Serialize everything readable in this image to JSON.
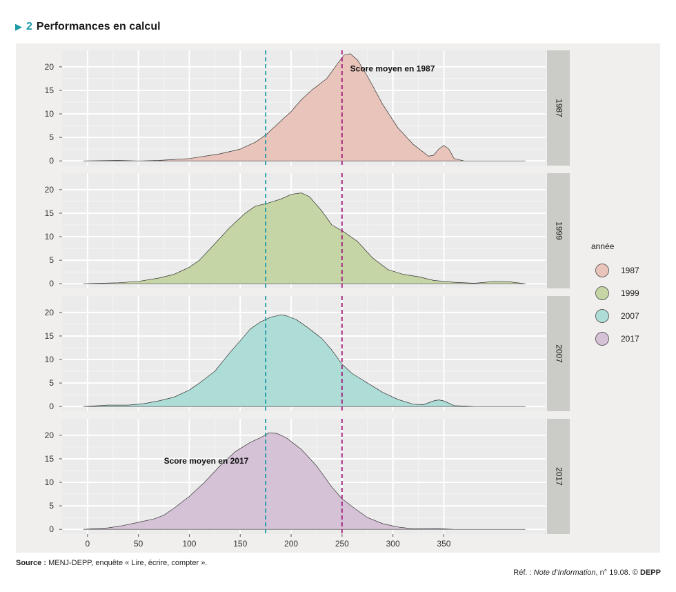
{
  "header": {
    "arrow_icon": "triangle-right-icon",
    "number": "2",
    "title": "Performances en calcul"
  },
  "footer": {
    "source_label": "Source :",
    "source_text": "MENJ-DEPP, enquête « Lire, écrire, compter ».",
    "ref_prefix": "Réf. : ",
    "ref_italic": "Note d’Information",
    "ref_suffix": ", n° 19.08. © ",
    "ref_org": "DEPP"
  },
  "chart_data": {
    "type": "area",
    "x_ticks": [
      0,
      50,
      100,
      150,
      200,
      250,
      300,
      350
    ],
    "y_ticks": [
      0,
      5,
      10,
      15,
      20
    ],
    "xlim": [
      -25,
      450
    ],
    "ylim": [
      -1,
      23.5
    ],
    "reference_lines": [
      {
        "x": 175,
        "color": "#1a9aa8"
      },
      {
        "x": 250,
        "color": "#a0197a"
      }
    ],
    "annotations": [
      {
        "panel": "1987",
        "text": "Score moyen en 1987",
        "x": 258,
        "y": 19
      },
      {
        "panel": "2017",
        "text": "Score moyen en 2017",
        "x": 75,
        "y": 14
      }
    ],
    "legend": {
      "title": "année",
      "position": "right"
    },
    "series": [
      {
        "name": "1987",
        "color": "#e8c4ba",
        "points": [
          [
            -4,
            0
          ],
          [
            30,
            0.1
          ],
          [
            50,
            0
          ],
          [
            70,
            0.1
          ],
          [
            100,
            0.5
          ],
          [
            130,
            1.5
          ],
          [
            150,
            2.5
          ],
          [
            165,
            4
          ],
          [
            175,
            5.5
          ],
          [
            190,
            8.5
          ],
          [
            200,
            10.5
          ],
          [
            210,
            13
          ],
          [
            220,
            15
          ],
          [
            235,
            17.5
          ],
          [
            245,
            20.5
          ],
          [
            252,
            22.5
          ],
          [
            258,
            22.8
          ],
          [
            265,
            21.5
          ],
          [
            275,
            18
          ],
          [
            290,
            12
          ],
          [
            305,
            7
          ],
          [
            320,
            3.5
          ],
          [
            335,
            1
          ],
          [
            340,
            1.2
          ],
          [
            345,
            2.5
          ],
          [
            350,
            3.3
          ],
          [
            355,
            2.5
          ],
          [
            360,
            0.5
          ],
          [
            370,
            0
          ],
          [
            430,
            0
          ]
        ]
      },
      {
        "name": "1999",
        "color": "#c5d5a5",
        "points": [
          [
            -4,
            0
          ],
          [
            30,
            0.2
          ],
          [
            50,
            0.5
          ],
          [
            70,
            1.2
          ],
          [
            85,
            2
          ],
          [
            100,
            3.5
          ],
          [
            110,
            5
          ],
          [
            125,
            8.5
          ],
          [
            140,
            12
          ],
          [
            155,
            15
          ],
          [
            165,
            16.5
          ],
          [
            175,
            17
          ],
          [
            190,
            18
          ],
          [
            200,
            19
          ],
          [
            210,
            19.3
          ],
          [
            218,
            18.5
          ],
          [
            230,
            15.5
          ],
          [
            240,
            12.5
          ],
          [
            252,
            11
          ],
          [
            265,
            9
          ],
          [
            280,
            5.5
          ],
          [
            295,
            3
          ],
          [
            310,
            2
          ],
          [
            325,
            1.5
          ],
          [
            340,
            0.7
          ],
          [
            360,
            0.3
          ],
          [
            380,
            0.1
          ],
          [
            400,
            0.5
          ],
          [
            415,
            0.4
          ],
          [
            430,
            0
          ]
        ]
      },
      {
        "name": "2007",
        "color": "#aedcd6",
        "points": [
          [
            -4,
            0
          ],
          [
            20,
            0.3
          ],
          [
            40,
            0.3
          ],
          [
            55,
            0.6
          ],
          [
            70,
            1.2
          ],
          [
            85,
            2
          ],
          [
            100,
            3.5
          ],
          [
            110,
            5
          ],
          [
            125,
            7.5
          ],
          [
            140,
            11.5
          ],
          [
            150,
            14
          ],
          [
            160,
            16.5
          ],
          [
            170,
            18
          ],
          [
            180,
            19
          ],
          [
            190,
            19.5
          ],
          [
            195,
            19.3
          ],
          [
            205,
            18.5
          ],
          [
            215,
            17
          ],
          [
            230,
            14.5
          ],
          [
            240,
            12
          ],
          [
            250,
            9
          ],
          [
            260,
            7
          ],
          [
            275,
            5
          ],
          [
            290,
            3
          ],
          [
            305,
            1.5
          ],
          [
            320,
            0.5
          ],
          [
            330,
            0.4
          ],
          [
            340,
            1.2
          ],
          [
            345,
            1.4
          ],
          [
            350,
            1.2
          ],
          [
            360,
            0.2
          ],
          [
            380,
            0
          ],
          [
            430,
            0
          ]
        ]
      },
      {
        "name": "2017",
        "color": "#d5c2d6",
        "points": [
          [
            -4,
            0
          ],
          [
            20,
            0.3
          ],
          [
            35,
            0.8
          ],
          [
            50,
            1.5
          ],
          [
            65,
            2.2
          ],
          [
            75,
            3
          ],
          [
            85,
            4.5
          ],
          [
            100,
            7
          ],
          [
            115,
            10
          ],
          [
            130,
            13.5
          ],
          [
            145,
            16.5
          ],
          [
            160,
            18.5
          ],
          [
            170,
            19.5
          ],
          [
            178,
            20.5
          ],
          [
            186,
            20.4
          ],
          [
            195,
            19.5
          ],
          [
            210,
            17
          ],
          [
            225,
            13.5
          ],
          [
            240,
            9
          ],
          [
            250,
            6.5
          ],
          [
            262,
            4.5
          ],
          [
            275,
            2.5
          ],
          [
            290,
            1.2
          ],
          [
            305,
            0.5
          ],
          [
            320,
            0.1
          ],
          [
            340,
            0.2
          ],
          [
            360,
            0
          ],
          [
            430,
            0
          ]
        ]
      }
    ]
  }
}
